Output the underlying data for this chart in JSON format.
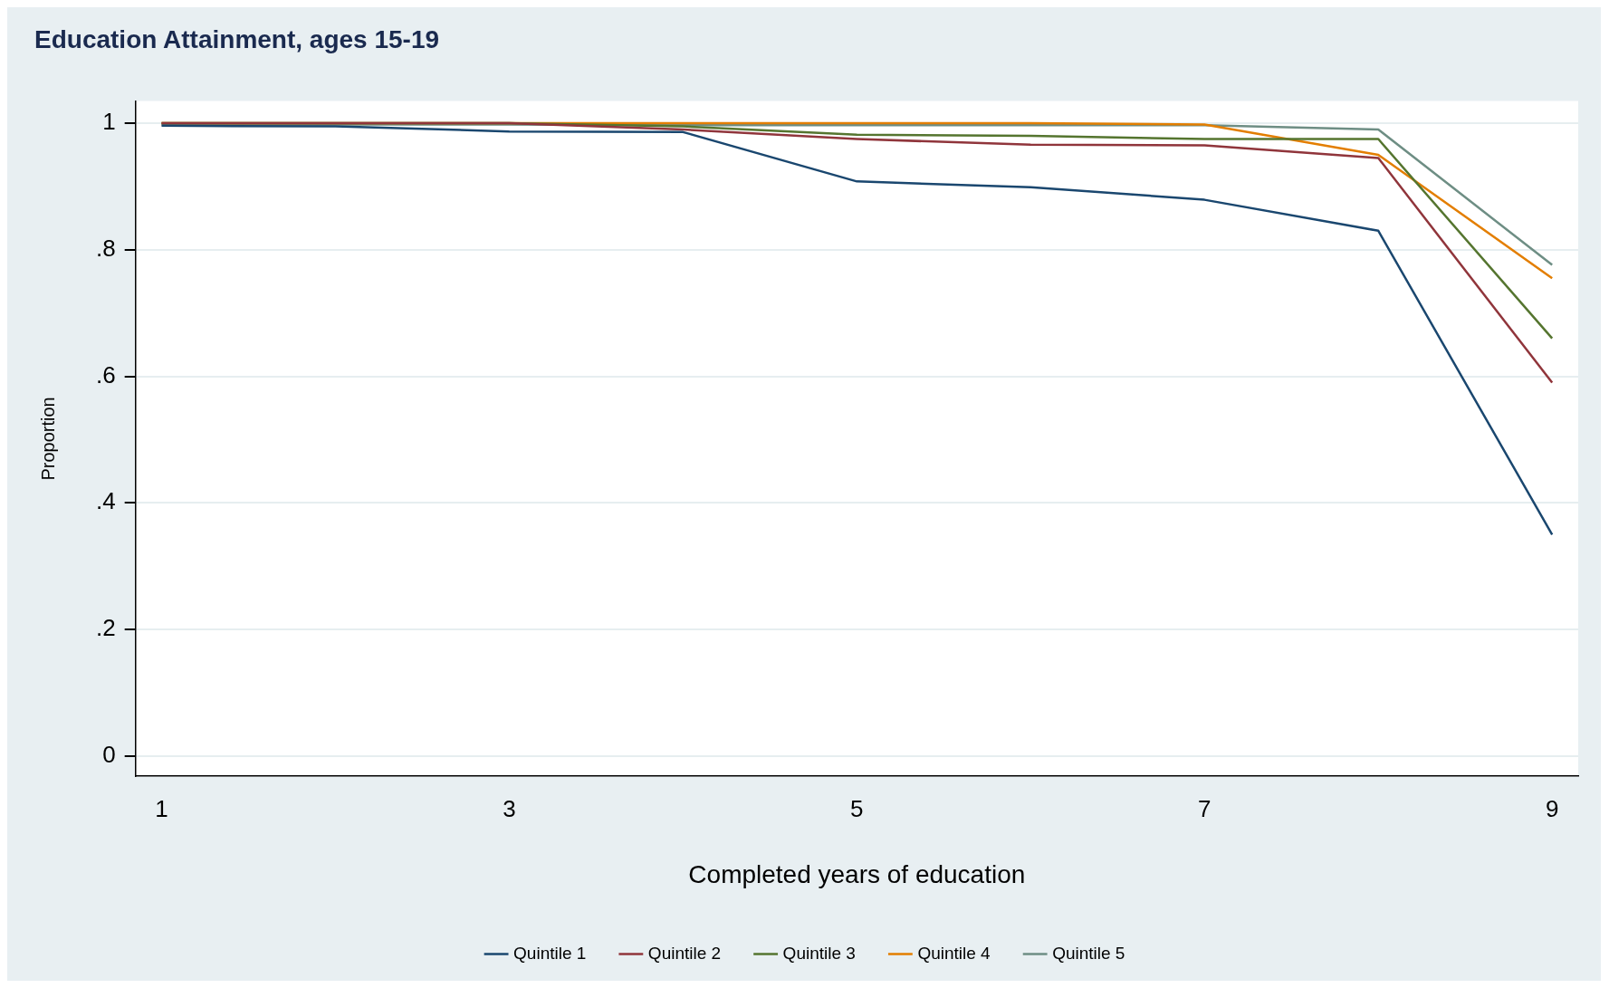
{
  "chart_data": {
    "type": "line",
    "title": "Education Attainment, ages 15-19",
    "xlabel": "Completed years of education",
    "ylabel": "Proportion",
    "x": [
      1,
      2,
      3,
      4,
      5,
      6,
      7,
      8,
      9
    ],
    "series": [
      {
        "name": "Quintile 1",
        "color": "#1a476f",
        "values": [
          0.996,
          0.995,
          0.987,
          0.986,
          0.908,
          0.899,
          0.879,
          0.83,
          0.35
        ]
      },
      {
        "name": "Quintile 2",
        "color": "#90353b",
        "values": [
          1,
          1,
          1,
          0.99,
          0.975,
          0.966,
          0.965,
          0.945,
          0.59
        ]
      },
      {
        "name": "Quintile 3",
        "color": "#55752f",
        "values": [
          1,
          1,
          1,
          0.995,
          0.982,
          0.98,
          0.975,
          0.975,
          0.66
        ]
      },
      {
        "name": "Quintile 4",
        "color": "#e37e00",
        "values": [
          1,
          1,
          1,
          1,
          1,
          1,
          0.998,
          0.95,
          0.755
        ]
      },
      {
        "name": "Quintile 5",
        "color": "#6e8e84",
        "values": [
          0.998,
          0.998,
          0.998,
          0.997,
          0.997,
          0.997,
          0.997,
          0.99,
          0.776
        ]
      }
    ],
    "xlim": [
      0.85,
      9.15
    ],
    "xticks": [
      1,
      3,
      5,
      7,
      9
    ],
    "ylim": [
      -0.032,
      1.035
    ],
    "yticks": [
      0,
      {
        "value": 0.2,
        "label": ".2"
      },
      {
        "value": 0.4,
        "label": ".4"
      },
      {
        "value": 0.6,
        "label": ".6"
      },
      {
        "value": 0.8,
        "label": ".8"
      },
      1
    ],
    "grid": "y",
    "legend": "bottom",
    "marker": "none",
    "line_style": "solid"
  }
}
